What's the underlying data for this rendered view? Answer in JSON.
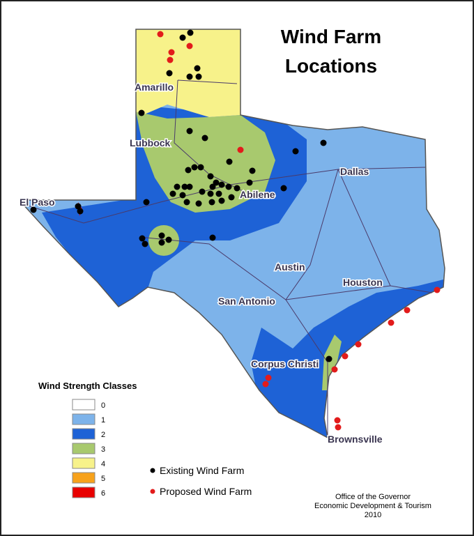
{
  "title": [
    "Wind Farm",
    "Locations"
  ],
  "cities": [
    "Amarillo",
    "Lubbock",
    "Dallas",
    "El Paso",
    "Abilene",
    "Austin",
    "Houston",
    "San Antonio",
    "Corpus Christi",
    "Brownsville"
  ],
  "legend": {
    "title": "Wind Strength Classes",
    "classes": [
      "0",
      "1",
      "2",
      "3",
      "4",
      "5",
      "6"
    ],
    "markers": [
      "Existing Wind Farm",
      "Proposed Wind Farm"
    ]
  },
  "credit": [
    "Office of the Governor",
    "Economic Development & Tourism",
    "2010"
  ]
}
